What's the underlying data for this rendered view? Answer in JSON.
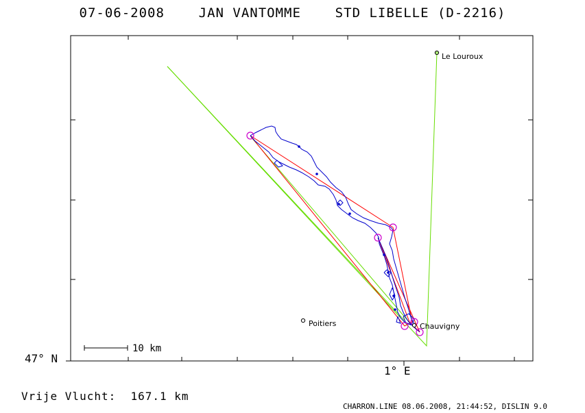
{
  "title": "07-06-2008    JAN VANTOMME    STD LIBELLE (D-2216)",
  "axis": {
    "lat_label": "47° N",
    "lon_label": "1° E"
  },
  "scale_bar_label": "10 km",
  "places": [
    {
      "name": "Le Louroux"
    },
    {
      "name": "Poitiers"
    },
    {
      "name": "Chauvigny"
    }
  ],
  "distance_text": "Vrije Vlucht:  167.1 km",
  "footer": "CHARRON.LINE 08.06.2008, 21:44:52, DISLIN 9.0",
  "colors": {
    "track": "#0000cc",
    "task": "#ff0000",
    "task_alt": "#66dd00",
    "turnpoint": "#cc00cc",
    "frame": "#000000"
  }
}
